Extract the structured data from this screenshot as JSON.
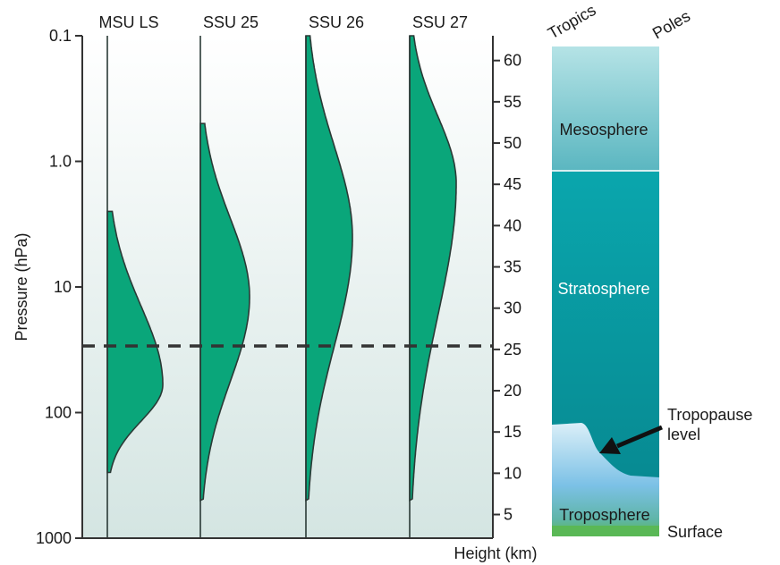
{
  "chart_data": {
    "type": "area",
    "title": "",
    "xlabel": "",
    "ylabel": "Pressure (hPa)",
    "y_scale": "log",
    "ylim": [
      1000,
      0.1
    ],
    "yticks": [
      {
        "value": 0.1,
        "label": "0.1"
      },
      {
        "value": 1,
        "label": "1.0"
      },
      {
        "value": 10,
        "label": "10"
      },
      {
        "value": 100,
        "label": "100"
      },
      {
        "value": 1000,
        "label": "1000"
      }
    ],
    "y2label": "Height (km)",
    "y2_ticks": [
      5,
      10,
      15,
      20,
      25,
      30,
      35,
      40,
      45,
      50,
      55,
      60
    ],
    "y2lim": [
      3,
      63
    ],
    "reference_line": {
      "pressure": 30,
      "style": "dashed"
    },
    "series": [
      {
        "name": "MSU LS",
        "peak_pressure": 60,
        "top_pressure": 2.5,
        "bottom_pressure": 300
      },
      {
        "name": "SSU 25",
        "peak_pressure": 12,
        "top_pressure": 0.5,
        "bottom_pressure": 500
      },
      {
        "name": "SSU 26",
        "peak_pressure": 4,
        "top_pressure": 0.1,
        "bottom_pressure": 500
      },
      {
        "name": "SSU 27",
        "peak_pressure": 1.5,
        "top_pressure": 0.1,
        "bottom_pressure": 500
      }
    ],
    "fill_color": "#0aa67a",
    "background_gradient": [
      "#ffffff",
      "#d4e5e2"
    ]
  },
  "atmosphere": {
    "header_left": "Tropics",
    "header_right": "Poles",
    "layers": [
      {
        "name": "Mesosphere",
        "label": "Mesosphere",
        "color": "#a8dcdf"
      },
      {
        "name": "Stratosphere",
        "label": "Stratosphere",
        "color": "#0aa3a8"
      },
      {
        "name": "Troposphere",
        "label": "Troposphere",
        "color": "#7cc1e6"
      }
    ],
    "surface_color": "#5ab856",
    "annotation_tropopause": "Tropopause level",
    "annotation_surface": "Surface"
  }
}
